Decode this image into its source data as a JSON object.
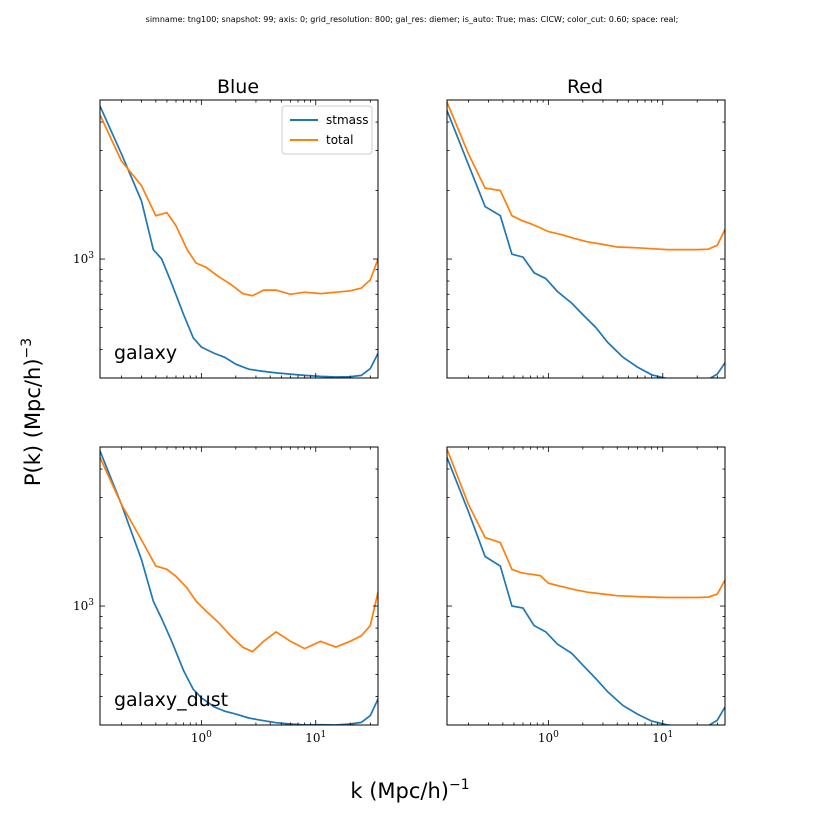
{
  "figure_title": "simname: tng100; snapshot: 99; axis: 0; grid_resolution: 800; gal_res: diemer; is_auto: True; mas: CICW; color_cut: 0.60; space: real;",
  "xlabel": "k (Mpc/h)",
  "xlabel_exp": "−1",
  "ylabel": "P(k) (Mpc/h)",
  "ylabel_exp": "−3",
  "column_titles": [
    "Blue",
    "Red"
  ],
  "row_labels": [
    "galaxy",
    "galaxy_dust"
  ],
  "colors": {
    "stmass": "#1f77b4",
    "total": "#ff7f0e"
  },
  "legend": {
    "placement": "upper right of top-left panel",
    "entries": [
      "stmass",
      "total"
    ]
  },
  "chart_data": [
    {
      "type": "line",
      "column": "Blue",
      "row": "galaxy",
      "xscale": "log",
      "yscale": "log",
      "xlim": [
        0.13,
        35
      ],
      "ylim": [
        300,
        5000
      ],
      "x_ticks": [
        {
          "value": 1,
          "base": "10",
          "exp": "0"
        },
        {
          "value": 10,
          "base": "10",
          "exp": "1"
        }
      ],
      "y_ticks": [
        {
          "value": 1000,
          "base": "10",
          "exp": "3"
        }
      ],
      "x_ticklabels_visible": false,
      "series": [
        {
          "name": "stmass",
          "x": [
            0.13,
            0.2,
            0.3,
            0.38,
            0.45,
            0.55,
            0.7,
            0.85,
            1.0,
            1.3,
            1.6,
            2.0,
            2.6,
            3.3,
            4.5,
            6,
            8,
            11,
            15,
            20,
            25,
            30,
            35
          ],
          "y": [
            4700,
            2900,
            1800,
            1100,
            1000,
            780,
            570,
            450,
            410,
            385,
            370,
            345,
            328,
            322,
            316,
            312,
            308,
            305,
            303,
            304,
            308,
            330,
            385
          ]
        },
        {
          "name": "total",
          "x": [
            0.13,
            0.2,
            0.3,
            0.4,
            0.5,
            0.6,
            0.75,
            0.9,
            1.1,
            1.4,
            1.8,
            2.3,
            2.8,
            3.5,
            4.5,
            6,
            8,
            11,
            15,
            20,
            25,
            30,
            35
          ],
          "y": [
            4300,
            2700,
            2100,
            1550,
            1600,
            1400,
            1100,
            960,
            920,
            840,
            775,
            705,
            690,
            730,
            730,
            700,
            715,
            705,
            715,
            725,
            745,
            810,
            1000
          ]
        }
      ]
    },
    {
      "type": "line",
      "column": "Red",
      "row": "galaxy",
      "xscale": "log",
      "yscale": "log",
      "xlim": [
        0.13,
        35
      ],
      "ylim": [
        300,
        5000
      ],
      "x_ticks": [
        {
          "value": 1,
          "base": "10",
          "exp": "0"
        },
        {
          "value": 10,
          "base": "10",
          "exp": "1"
        }
      ],
      "y_ticks": [],
      "x_ticklabels_visible": false,
      "series": [
        {
          "name": "stmass",
          "x": [
            0.13,
            0.2,
            0.28,
            0.38,
            0.48,
            0.6,
            0.75,
            0.95,
            1.2,
            1.6,
            2.0,
            2.6,
            3.3,
            4.5,
            6,
            8,
            11,
            15,
            20,
            25,
            30,
            35
          ],
          "y": [
            4500,
            2600,
            1700,
            1550,
            1050,
            1020,
            870,
            820,
            720,
            640,
            570,
            500,
            430,
            370,
            335,
            310,
            298,
            293,
            294,
            296,
            312,
            350
          ]
        },
        {
          "name": "total",
          "x": [
            0.13,
            0.2,
            0.28,
            0.38,
            0.48,
            0.58,
            0.7,
            0.85,
            1.0,
            1.3,
            1.7,
            2.2,
            3,
            4,
            6,
            8,
            11,
            15,
            20,
            25,
            30,
            35
          ],
          "y": [
            4900,
            2900,
            2050,
            2000,
            1550,
            1480,
            1430,
            1370,
            1320,
            1280,
            1230,
            1190,
            1160,
            1130,
            1120,
            1110,
            1100,
            1100,
            1100,
            1105,
            1150,
            1350
          ]
        }
      ]
    },
    {
      "type": "line",
      "column": "Blue",
      "row": "galaxy_dust",
      "xscale": "log",
      "yscale": "log",
      "xlim": [
        0.13,
        35
      ],
      "ylim": [
        300,
        5000
      ],
      "x_ticks": [
        {
          "value": 1,
          "base": "10",
          "exp": "0"
        },
        {
          "value": 10,
          "base": "10",
          "exp": "1"
        }
      ],
      "y_ticks": [
        {
          "value": 1000,
          "base": "10",
          "exp": "3"
        }
      ],
      "x_ticklabels_visible": true,
      "series": [
        {
          "name": "stmass",
          "x": [
            0.13,
            0.2,
            0.3,
            0.38,
            0.45,
            0.55,
            0.7,
            0.85,
            1.0,
            1.3,
            1.6,
            2.0,
            2.6,
            3.3,
            4.5,
            6,
            8,
            11,
            15,
            20,
            25,
            30,
            35
          ],
          "y": [
            4800,
            2800,
            1600,
            1050,
            880,
            700,
            520,
            430,
            395,
            360,
            345,
            335,
            322,
            315,
            307,
            303,
            300,
            301,
            300,
            303,
            308,
            330,
            390
          ]
        },
        {
          "name": "total",
          "x": [
            0.13,
            0.2,
            0.3,
            0.4,
            0.5,
            0.6,
            0.75,
            0.9,
            1.1,
            1.4,
            1.8,
            2.3,
            2.8,
            3.5,
            4.5,
            6,
            8,
            11,
            15,
            20,
            25,
            30,
            35
          ],
          "y": [
            4500,
            2800,
            1950,
            1500,
            1450,
            1350,
            1200,
            1050,
            950,
            850,
            740,
            660,
            630,
            700,
            770,
            700,
            650,
            700,
            660,
            700,
            740,
            820,
            1150
          ]
        }
      ]
    },
    {
      "type": "line",
      "column": "Red",
      "row": "galaxy_dust",
      "xscale": "log",
      "yscale": "log",
      "xlim": [
        0.13,
        35
      ],
      "ylim": [
        300,
        5000
      ],
      "x_ticks": [
        {
          "value": 1,
          "base": "10",
          "exp": "0"
        },
        {
          "value": 10,
          "base": "10",
          "exp": "1"
        }
      ],
      "y_ticks": [],
      "x_ticklabels_visible": true,
      "series": [
        {
          "name": "stmass",
          "x": [
            0.13,
            0.2,
            0.28,
            0.38,
            0.48,
            0.6,
            0.75,
            0.95,
            1.2,
            1.6,
            2.0,
            2.6,
            3.3,
            4.5,
            6,
            8,
            11,
            15,
            20,
            25,
            30,
            35
          ],
          "y": [
            4500,
            2600,
            1650,
            1500,
            1000,
            980,
            820,
            770,
            680,
            620,
            550,
            480,
            420,
            365,
            335,
            312,
            300,
            296,
            296,
            298,
            315,
            360
          ]
        },
        {
          "name": "total",
          "x": [
            0.13,
            0.2,
            0.28,
            0.38,
            0.48,
            0.58,
            0.7,
            0.85,
            1.0,
            1.3,
            1.7,
            2.2,
            3,
            4,
            6,
            8,
            11,
            15,
            20,
            25,
            30,
            35
          ],
          "y": [
            4900,
            2800,
            2000,
            1900,
            1450,
            1400,
            1380,
            1360,
            1260,
            1220,
            1180,
            1150,
            1130,
            1110,
            1100,
            1095,
            1090,
            1090,
            1090,
            1095,
            1130,
            1300
          ]
        }
      ]
    }
  ]
}
